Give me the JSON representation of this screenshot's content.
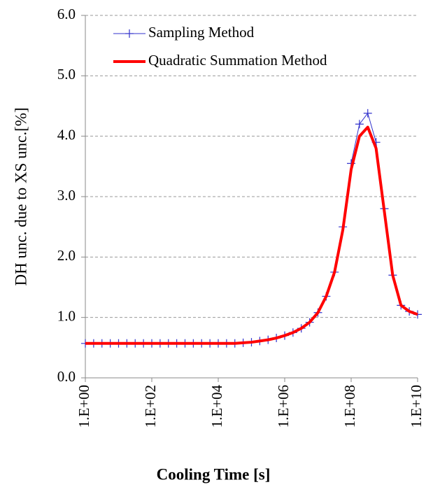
{
  "chart_data": {
    "type": "line",
    "y_label": "DH unc. due to XS unc.[%]",
    "x_label": "Cooling Time [s]",
    "log_x": true,
    "grid": true,
    "legend": "upper left",
    "x": [
      1.0,
      1.778,
      3.162,
      5.623,
      10.0,
      17.78,
      31.62,
      56.23,
      100.0,
      177.8,
      316.2,
      562.3,
      1000.0,
      1778.0,
      3162.0,
      5623.0,
      10000.0,
      17780.0,
      31620.0,
      56230.0,
      100000.0,
      177800.0,
      316200.0,
      562300.0,
      1000000.0,
      1778000.0,
      3162000.0,
      5623000.0,
      10000000.0,
      17780000.0,
      31620000.0,
      56230000.0,
      100000000.0,
      177800000.0,
      316200000.0,
      562300000.0,
      1000000000.0,
      1778000000.0,
      3162000000.0,
      5623000000.0,
      10000000000.0
    ],
    "series": [
      {
        "name": "Sampling Method",
        "color": "#3333cc",
        "marker": "+",
        "values": [
          0.57,
          0.57,
          0.57,
          0.57,
          0.57,
          0.57,
          0.57,
          0.57,
          0.57,
          0.57,
          0.57,
          0.57,
          0.57,
          0.57,
          0.57,
          0.57,
          0.57,
          0.57,
          0.57,
          0.58,
          0.59,
          0.61,
          0.63,
          0.66,
          0.7,
          0.75,
          0.82,
          0.92,
          1.08,
          1.35,
          1.75,
          2.5,
          3.55,
          4.2,
          4.38,
          3.9,
          2.8,
          1.7,
          1.2,
          1.1,
          1.05
        ]
      },
      {
        "name": "Quadratic Summation Method",
        "color": "#ff0000",
        "values": [
          0.57,
          0.57,
          0.57,
          0.57,
          0.57,
          0.57,
          0.57,
          0.57,
          0.57,
          0.57,
          0.57,
          0.57,
          0.57,
          0.57,
          0.57,
          0.57,
          0.57,
          0.57,
          0.57,
          0.58,
          0.59,
          0.61,
          0.63,
          0.66,
          0.7,
          0.75,
          0.82,
          0.92,
          1.08,
          1.35,
          1.75,
          2.45,
          3.45,
          4.0,
          4.15,
          3.8,
          2.75,
          1.7,
          1.2,
          1.1,
          1.05
        ]
      }
    ],
    "xlim": [
      1,
      10000000000.0
    ],
    "xticks": [
      {
        "value": 1,
        "label": "1.E+00"
      },
      {
        "value": 100,
        "label": "1.E+02"
      },
      {
        "value": 10000,
        "label": "1.E+04"
      },
      {
        "value": 1000000,
        "label": "1.E+06"
      },
      {
        "value": 100000000,
        "label": "1.E+08"
      },
      {
        "value": 10000000000,
        "label": "1.E+10"
      }
    ],
    "ylim": [
      0,
      6
    ],
    "yticks": [
      {
        "value": 0,
        "label": "0.0"
      },
      {
        "value": 1,
        "label": "1.0"
      },
      {
        "value": 2,
        "label": "2.0"
      },
      {
        "value": 3,
        "label": "3.0"
      },
      {
        "value": 4,
        "label": "4.0"
      },
      {
        "value": 5,
        "label": "5.0"
      },
      {
        "value": 6,
        "label": "6.0"
      }
    ]
  }
}
